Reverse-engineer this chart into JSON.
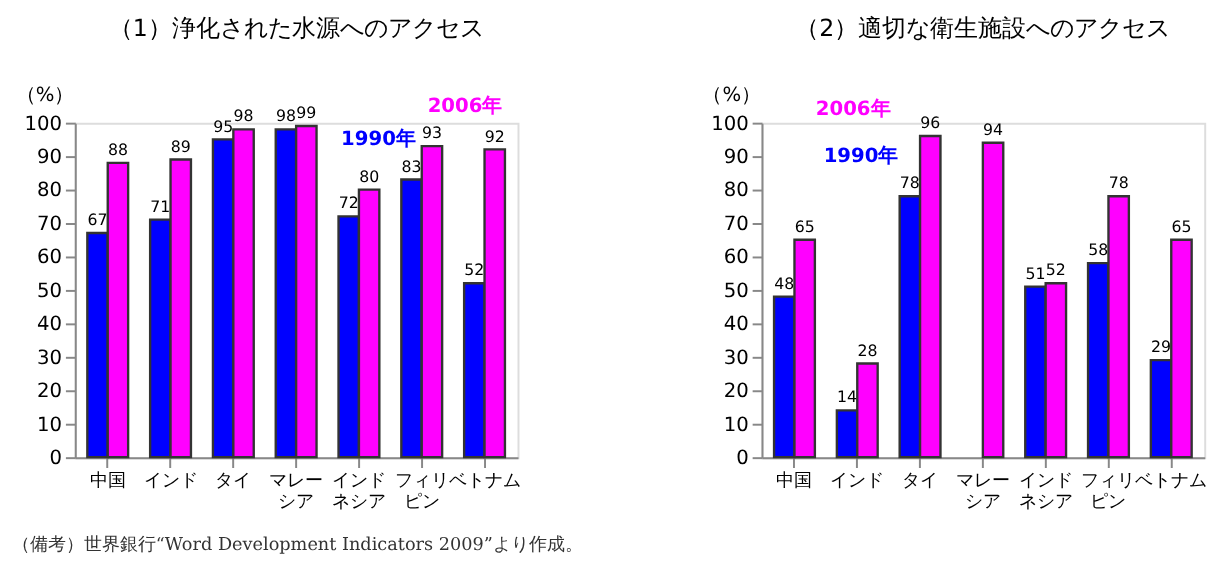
{
  "chart_data": [
    {
      "type": "bar",
      "title": "（1）浄化された水源へのアクセス",
      "ylabel": "（%）",
      "categories": [
        "中国",
        "インド",
        "タイ",
        "マレーシア",
        "インドネシア",
        "フィリピン",
        "ベトナム"
      ],
      "series": [
        {
          "name": "1990年",
          "color": "#0000ff",
          "values": [
            67,
            71,
            95,
            98,
            72,
            83,
            52
          ]
        },
        {
          "name": "2006年",
          "color": "#ff00ff",
          "values": [
            88,
            89,
            98,
            99,
            80,
            93,
            92
          ]
        }
      ],
      "ylim": [
        0,
        100
      ],
      "yticks": [
        0,
        10,
        20,
        30,
        40,
        50,
        60,
        70,
        80,
        90,
        100
      ],
      "data_labels": true,
      "grid": false,
      "legend": false,
      "annotations": [
        "（備考）世界銀行“Word Development Indicators 2009”より作成。"
      ]
    },
    {
      "type": "bar",
      "title": "（2）適切な衛生施設へのアクセス",
      "ylabel": "（%）",
      "categories": [
        "中国",
        "インド",
        "タイ",
        "マレーシア",
        "インドネシア",
        "フィリピン",
        "ベトナム"
      ],
      "series": [
        {
          "name": "1990年",
          "color": "#0000ff",
          "values": [
            48,
            14,
            78,
            null,
            51,
            58,
            29
          ]
        },
        {
          "name": "2006年",
          "color": "#ff00ff",
          "values": [
            65,
            28,
            96,
            94,
            52,
            78,
            65
          ]
        }
      ],
      "ylim": [
        0,
        100
      ],
      "yticks": [
        0,
        10,
        20,
        30,
        40,
        50,
        60,
        70,
        80,
        90,
        100
      ],
      "data_labels": true,
      "grid": false,
      "legend": false
    }
  ]
}
